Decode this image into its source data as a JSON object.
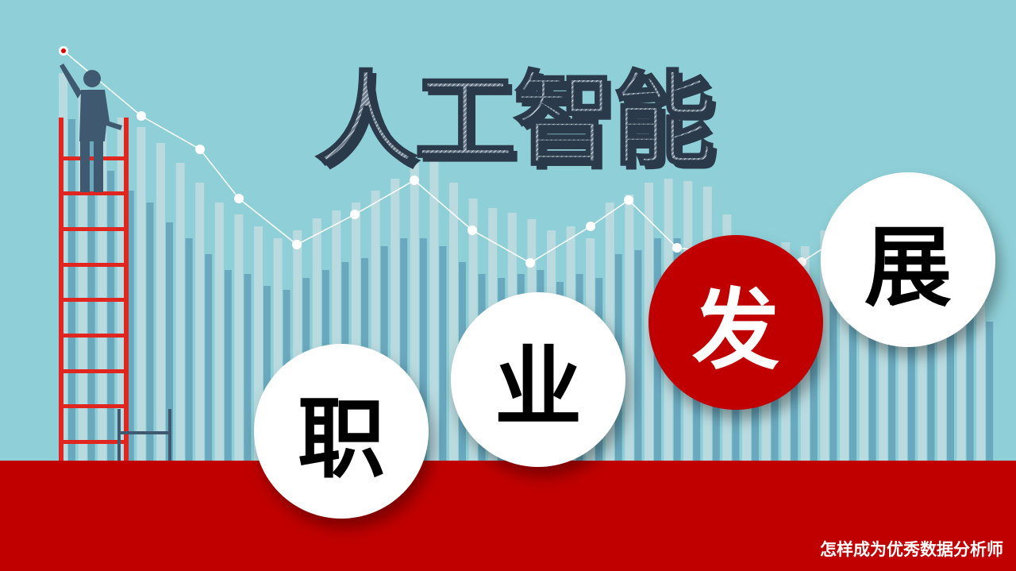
{
  "title": {
    "chars": [
      "人",
      "工",
      "智",
      "能"
    ]
  },
  "circles": [
    {
      "char": "职"
    },
    {
      "char": "业"
    },
    {
      "char": "发"
    },
    {
      "char": "展"
    }
  ],
  "subtitle": "怎样成为优秀数据分析师",
  "colors": {
    "sky": "#8fd0d8",
    "red": "#c00000",
    "bar_light": "#b9dbe0",
    "bar_dark": "#6aa8be",
    "figure": "#3f5a70",
    "white": "#ffffff"
  }
}
